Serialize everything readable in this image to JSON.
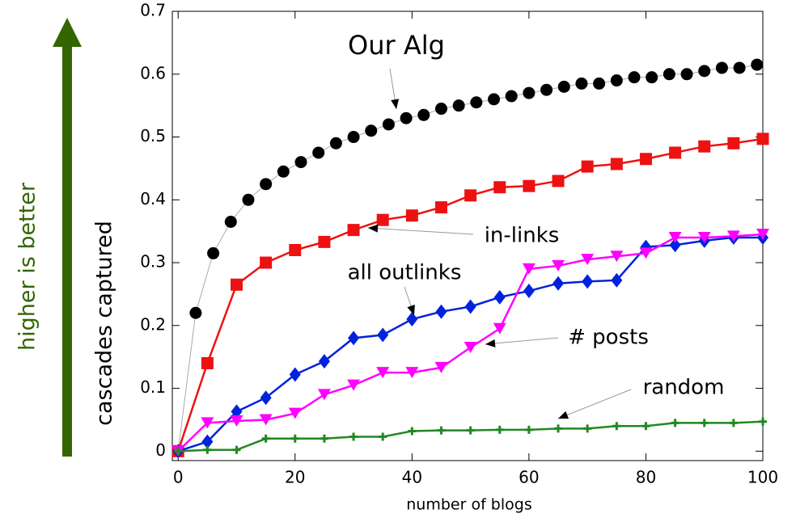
{
  "chart_data": {
    "type": "line",
    "xlabel": "number of blogs",
    "ylabel": "cascades captured",
    "side_label": "higher is better",
    "side_color": "#336600",
    "annotations": [
      "Our Alg",
      "in-links",
      "all outlinks",
      "# posts",
      "random"
    ],
    "xlim": [
      -1,
      100
    ],
    "ylim": [
      -0.015,
      0.7
    ],
    "xticks": [
      0,
      20,
      40,
      60,
      80,
      100
    ],
    "yticks": [
      0,
      0.1,
      0.2,
      0.3,
      0.4,
      0.5,
      0.6,
      0.7
    ],
    "series": [
      {
        "name": "Our Alg",
        "color": "#000000",
        "marker": "circle",
        "x": [
          0,
          3,
          6,
          9,
          12,
          15,
          18,
          21,
          24,
          27,
          30,
          33,
          36,
          39,
          42,
          45,
          48,
          51,
          54,
          57,
          60,
          63,
          66,
          69,
          72,
          75,
          78,
          81,
          84,
          87,
          90,
          93,
          96,
          99
        ],
        "values": [
          0,
          0.22,
          0.315,
          0.365,
          0.4,
          0.425,
          0.445,
          0.46,
          0.475,
          0.49,
          0.5,
          0.51,
          0.52,
          0.53,
          0.535,
          0.545,
          0.55,
          0.555,
          0.56,
          0.565,
          0.57,
          0.575,
          0.58,
          0.585,
          0.585,
          0.59,
          0.595,
          0.595,
          0.6,
          0.6,
          0.605,
          0.61,
          0.61,
          0.615
        ]
      },
      {
        "name": "in-links",
        "color": "#ee1111",
        "marker": "square",
        "x": [
          0,
          5,
          10,
          15,
          20,
          25,
          30,
          35,
          40,
          45,
          50,
          55,
          60,
          65,
          70,
          75,
          80,
          85,
          90,
          95,
          100
        ],
        "values": [
          0,
          0.14,
          0.265,
          0.3,
          0.32,
          0.333,
          0.352,
          0.368,
          0.375,
          0.388,
          0.407,
          0.42,
          0.422,
          0.43,
          0.453,
          0.457,
          0.465,
          0.475,
          0.485,
          0.49,
          0.497
        ]
      },
      {
        "name": "all outlinks",
        "color": "#0022dd",
        "marker": "diamond",
        "x": [
          0,
          5,
          10,
          15,
          20,
          25,
          30,
          35,
          40,
          45,
          50,
          55,
          60,
          65,
          70,
          75,
          80,
          85,
          90,
          95,
          100
        ],
        "values": [
          0,
          0.015,
          0.063,
          0.085,
          0.122,
          0.143,
          0.18,
          0.185,
          0.21,
          0.222,
          0.23,
          0.245,
          0.255,
          0.267,
          0.27,
          0.272,
          0.325,
          0.328,
          0.335,
          0.34,
          0.34
        ]
      },
      {
        "name": "# posts",
        "color": "#ff00ff",
        "marker": "triangle-down",
        "x": [
          0,
          5,
          10,
          15,
          20,
          25,
          30,
          35,
          40,
          45,
          50,
          55,
          60,
          65,
          70,
          75,
          80,
          85,
          90,
          95,
          100
        ],
        "values": [
          0,
          0.045,
          0.048,
          0.05,
          0.06,
          0.09,
          0.105,
          0.125,
          0.125,
          0.133,
          0.165,
          0.195,
          0.29,
          0.295,
          0.305,
          0.31,
          0.315,
          0.34,
          0.34,
          0.342,
          0.345
        ]
      },
      {
        "name": "random",
        "color": "#228822",
        "marker": "star",
        "x": [
          0,
          5,
          10,
          15,
          20,
          25,
          30,
          35,
          40,
          45,
          50,
          55,
          60,
          65,
          70,
          75,
          80,
          85,
          90,
          95,
          100
        ],
        "values": [
          0,
          0.002,
          0.002,
          0.02,
          0.02,
          0.02,
          0.023,
          0.023,
          0.032,
          0.033,
          0.033,
          0.034,
          0.034,
          0.036,
          0.036,
          0.04,
          0.04,
          0.045,
          0.045,
          0.045,
          0.047
        ]
      }
    ]
  }
}
